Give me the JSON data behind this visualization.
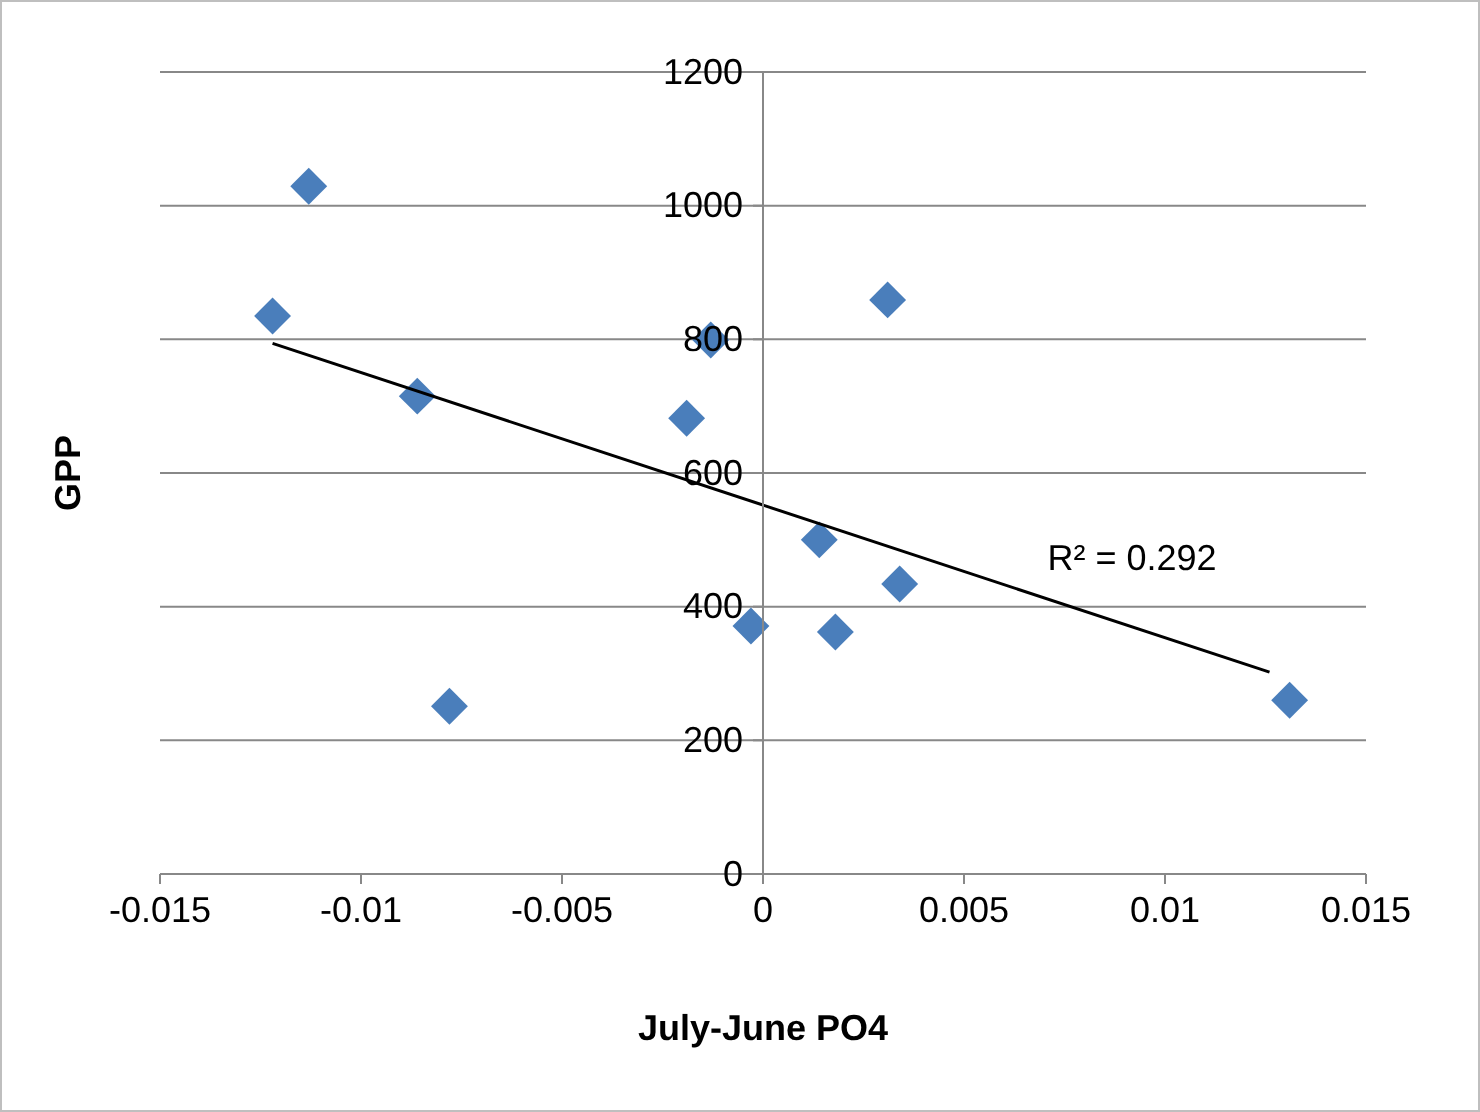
{
  "chart_data": {
    "type": "scatter",
    "xlabel": "July-June PO4",
    "ylabel": "GPP",
    "xlim": [
      -0.015,
      0.015
    ],
    "xticks": [
      -0.015,
      -0.01,
      -0.005,
      0,
      0.005,
      0.01,
      0.015
    ],
    "ylim": [
      0,
      1200
    ],
    "yticks": [
      0,
      200,
      400,
      600,
      800,
      1000,
      1200
    ],
    "grid": "y",
    "series": [
      {
        "marker": "diamond",
        "color": "#4a7ebb",
        "x": [
          -0.0113,
          -0.0122,
          -0.0086,
          -0.0078,
          -0.0013,
          -0.0019,
          -0.0003,
          0.0014,
          0.0018,
          0.0031,
          0.0034,
          0.0131
        ],
        "values": [
          1029,
          835,
          715,
          251,
          799,
          682,
          371,
          500,
          362,
          859,
          434,
          260
        ]
      },
      {
        "type": "line",
        "marker": "none",
        "color": "#000000",
        "x": [
          -0.0122,
          0.0126
        ],
        "values": [
          794,
          302
        ]
      }
    ],
    "annotations": [
      "R² = 0.292"
    ]
  }
}
